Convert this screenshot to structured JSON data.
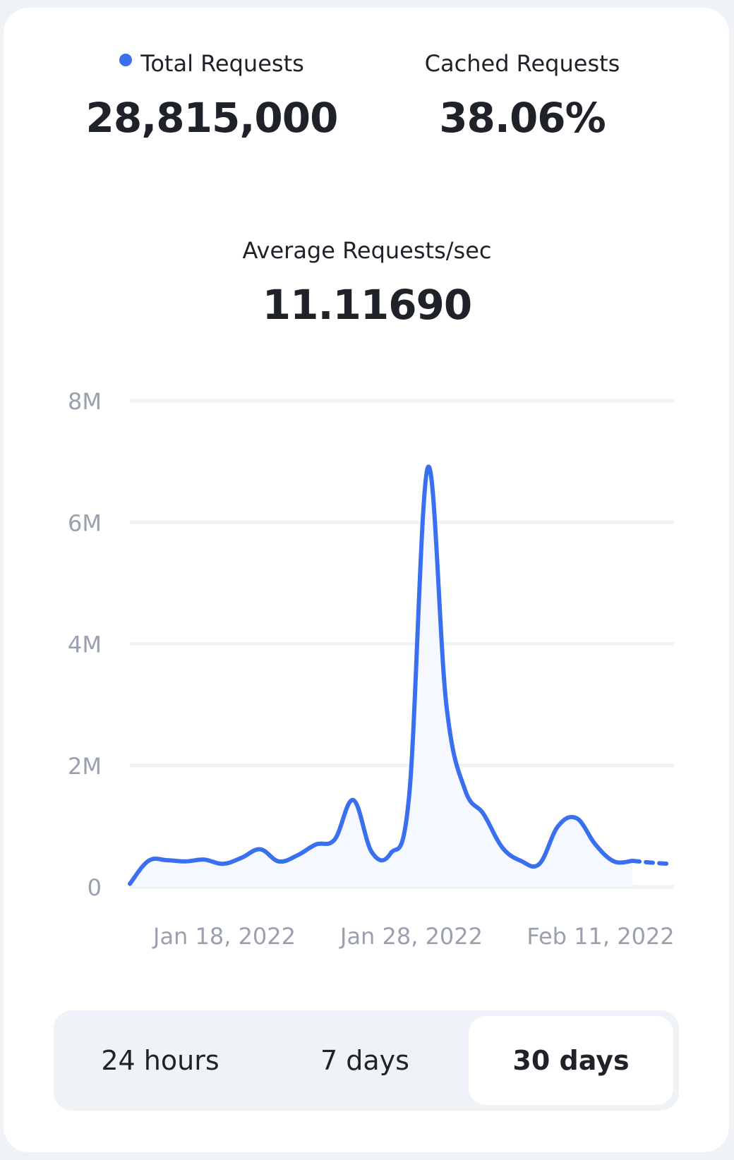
{
  "stats": {
    "total_requests": {
      "label": "Total Requests",
      "value": "28,815,000",
      "dot_color": "#3a6ff0"
    },
    "cached_requests": {
      "label": "Cached Requests",
      "value": "38.06%"
    },
    "average_requests": {
      "label": "Average Requests/sec",
      "value": "11.11690"
    }
  },
  "chart_data": {
    "type": "area",
    "title": "",
    "xlabel": "",
    "ylabel": "",
    "ylim": [
      0,
      8000000
    ],
    "y_ticks": [
      {
        "value": 0,
        "label": "0"
      },
      {
        "value": 2000000,
        "label": "2M"
      },
      {
        "value": 4000000,
        "label": "4M"
      },
      {
        "value": 6000000,
        "label": "6M"
      },
      {
        "value": 8000000,
        "label": "8M"
      }
    ],
    "x_tick_labels": [
      "Jan 18, 2022",
      "Jan 28, 2022",
      "Feb 11, 2022"
    ],
    "grid": true,
    "legend": "none",
    "line_color": "#3a6ff0",
    "fill_color": "#f5f8fe",
    "series": [
      {
        "values": [
          50000,
          430000,
          440000,
          420000,
          450000,
          380000,
          480000,
          620000,
          420000,
          520000,
          700000,
          780000,
          1430000,
          570000,
          550000,
          1500000,
          6900000,
          3000000,
          1600000,
          1200000,
          650000,
          430000,
          380000,
          1000000,
          1130000,
          700000,
          420000,
          430000
        ],
        "projected_values": [
          430000,
          400000,
          380000
        ]
      }
    ]
  },
  "range_selector": {
    "options": [
      "24 hours",
      "7 days",
      "30 days"
    ],
    "selected": "30 days"
  }
}
